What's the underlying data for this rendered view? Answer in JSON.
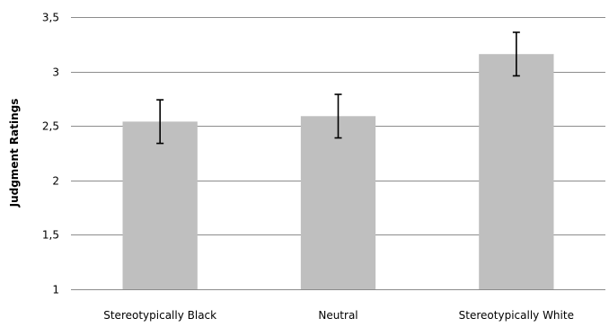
{
  "chart_data": {
    "type": "bar",
    "title": "",
    "xlabel": "",
    "ylabel": "Judgment Ratings",
    "categories": [
      "Stereotypically Black",
      "Neutral",
      "Stereotypically White"
    ],
    "values": [
      2.54,
      2.59,
      3.16
    ],
    "error": [
      0.2,
      0.2,
      0.2
    ],
    "ylim": [
      1,
      3.5
    ],
    "yticks": [
      1,
      1.5,
      2,
      2.5,
      3,
      3.5
    ],
    "ytick_labels": [
      "1",
      "1,5",
      "2",
      "2,5",
      "3",
      "3,5"
    ],
    "grid": true,
    "legend": "none",
    "colors": {
      "bar": "#bfbfbf",
      "grid": "#8c8c8c",
      "error_bar": "#000000"
    }
  }
}
